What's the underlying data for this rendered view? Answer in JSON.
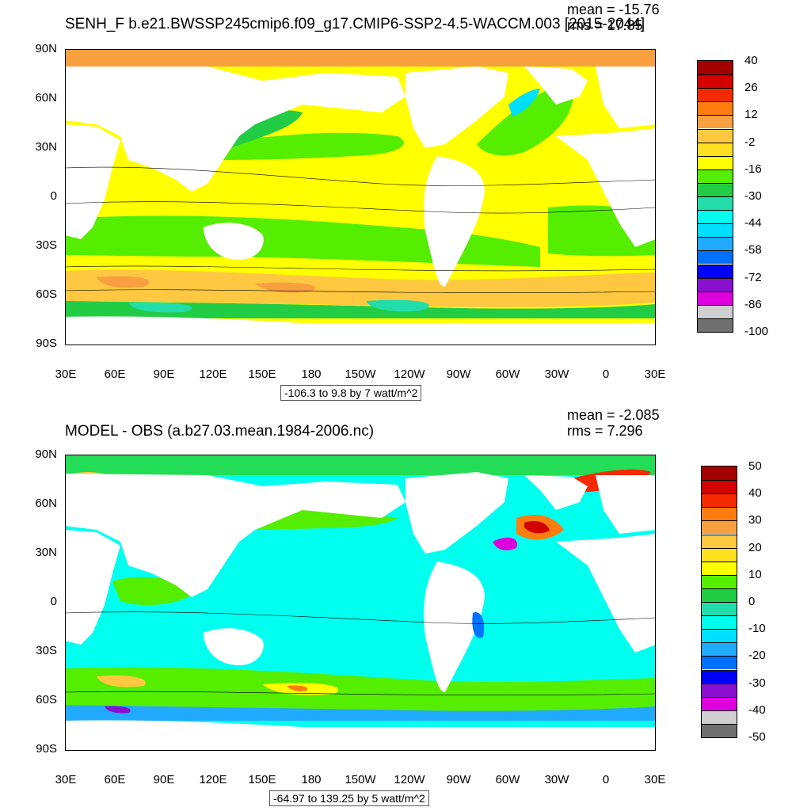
{
  "panels": [
    {
      "title": "SENH_F b.e21.BWSSP245cmip6.f09_g17.CMIP6-SSP2-4.5-WACCM.003 [2015-2044]",
      "mean": "mean = -15.76",
      "rms": "rms = 17.85",
      "range_label": "-106.3 to 9.8 by 7 watt/m^2",
      "lat_labels": [
        "90N",
        "60N",
        "30N",
        "0",
        "30S",
        "60S",
        "90S"
      ],
      "lon_labels": [
        "30E",
        "60E",
        "90E",
        "120E",
        "150E",
        "180",
        "150W",
        "120W",
        "90W",
        "60W",
        "30W",
        "0",
        "30E"
      ],
      "colorbar": {
        "labels": [
          "40",
          "26",
          "12",
          "-2",
          "-16",
          "-30",
          "-44",
          "-58",
          "-72",
          "-86",
          "-100"
        ],
        "colors": [
          "#a50000",
          "#d40000",
          "#f52a00",
          "#ff7d10",
          "#f8a040",
          "#ffc840",
          "#ffe020",
          "#ffff00",
          "#55ee00",
          "#22cc44",
          "#22ddaa",
          "#00ffee",
          "#00dfff",
          "#22aaff",
          "#0070ff",
          "#0000ff",
          "#8a10d0",
          "#dd00dd",
          "#cfcfcf",
          "#707070"
        ]
      }
    },
    {
      "title": "MODEL - OBS (a.b27.03.mean.1984-2006.nc)",
      "mean": "mean = -2.085",
      "rms": "rms = 7.296",
      "range_label": "-64.97 to 139.25 by 5 watt/m^2",
      "lat_labels": [
        "90N",
        "60N",
        "30N",
        "0",
        "30S",
        "60S",
        "90S"
      ],
      "lon_labels": [
        "30E",
        "60E",
        "90E",
        "120E",
        "150E",
        "180",
        "150W",
        "120W",
        "90W",
        "60W",
        "30W",
        "0",
        "30E"
      ],
      "colorbar": {
        "labels": [
          "50",
          "40",
          "30",
          "20",
          "10",
          "0",
          "-10",
          "-20",
          "-30",
          "-40",
          "-50"
        ],
        "colors": [
          "#a50000",
          "#d40000",
          "#f52a00",
          "#ff7d10",
          "#f8a040",
          "#ffc840",
          "#ffe020",
          "#ffff00",
          "#55ee00",
          "#22cc44",
          "#22ddaa",
          "#00ffee",
          "#00dfff",
          "#22aaff",
          "#0070ff",
          "#0000ff",
          "#8a10d0",
          "#dd00dd",
          "#cfcfcf",
          "#707070"
        ]
      }
    }
  ]
}
